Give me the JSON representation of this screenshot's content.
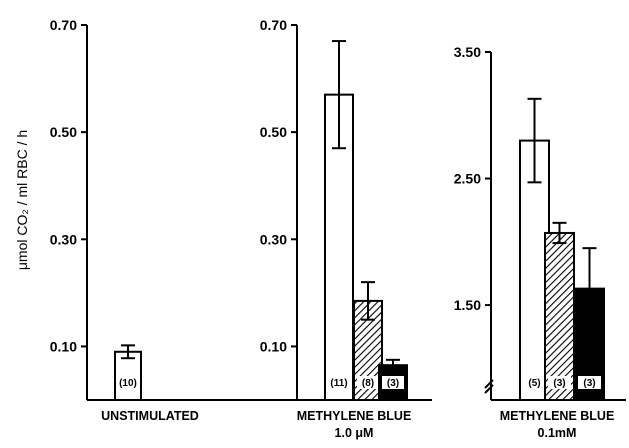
{
  "chart_data": {
    "type": "bar",
    "ylabel": "μmol CO₂ / ml RBC / h",
    "panels": [
      {
        "ylim": [
          0.0,
          0.7
        ],
        "ticks": [
          "0.10",
          "0.30",
          "0.50",
          "0.70"
        ],
        "tick_values": [
          0.1,
          0.3,
          0.5,
          0.7
        ],
        "xlabel_lines": [
          "UNSTIMULATED"
        ],
        "bars": [
          {
            "value": 0.09,
            "error": 0.012,
            "n": "(10)",
            "pattern": "open"
          }
        ]
      },
      {
        "ylim": [
          0.0,
          0.7
        ],
        "ticks": [
          "0.10",
          "0.30",
          "0.50",
          "0.70"
        ],
        "tick_values": [
          0.1,
          0.3,
          0.5,
          0.7
        ],
        "xlabel_lines": [
          "METHYLENE  BLUE",
          "1.0 μM"
        ],
        "bars": [
          {
            "value": 0.57,
            "error": 0.1,
            "n": "(11)",
            "pattern": "open"
          },
          {
            "value": 0.185,
            "error": 0.035,
            "n": "(8)",
            "pattern": "hatched"
          },
          {
            "value": 0.065,
            "error": 0.01,
            "n": "(3)",
            "pattern": "solid"
          }
        ]
      },
      {
        "ylim": [
          0.75,
          3.5
        ],
        "axis_break": true,
        "ticks": [
          "1.50",
          "2.50",
          "3.50"
        ],
        "tick_values": [
          1.5,
          2.5,
          3.5
        ],
        "xlabel_lines": [
          "METHYLENE  BLUE",
          "0.1mM"
        ],
        "bars": [
          {
            "value": 2.8,
            "error": 0.33,
            "n": "(5)",
            "pattern": "open"
          },
          {
            "value": 2.07,
            "error": 0.08,
            "n": "(3)",
            "pattern": "hatched"
          },
          {
            "value": 1.63,
            "error": 0.32,
            "n": "(3)",
            "pattern": "solid"
          }
        ]
      }
    ]
  }
}
